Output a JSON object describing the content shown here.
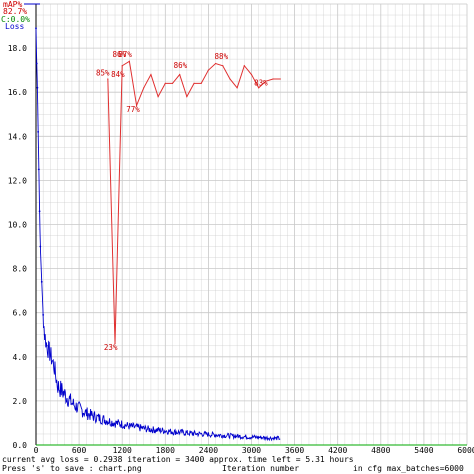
{
  "legend": {
    "map_label": "mAP%",
    "map_value": "82.7%",
    "c_label": "C:0.0%",
    "loss_label": "Loss"
  },
  "status": {
    "left": "current avg loss = 0.2938   iteration = 3400   approx. time left = 5.31 hours",
    "left2": "Press 's' to save : chart.png",
    "xlabel": "Iteration number",
    "right": "in cfg max_batches=6000"
  },
  "colors": {
    "map_line": "#e03030",
    "map_text": "#cc0000",
    "loss": "#0000cc",
    "c_text": "#008800",
    "grid": "#c8c8c8",
    "axis": "#000000"
  },
  "chart_data": {
    "type": "line",
    "title": "",
    "xlabel": "Iteration number",
    "ylabel": "",
    "xlim": [
      0,
      6000
    ],
    "ylim": [
      0,
      20
    ],
    "grid": true,
    "legend_position": "top-left",
    "x_ticks": [
      "0",
      "600",
      "1200",
      "1800",
      "2400",
      "3000",
      "3600",
      "4200",
      "4800",
      "5400",
      "6000"
    ],
    "y_ticks": [
      "0.0",
      "2.0",
      "4.0",
      "6.0",
      "8.0",
      "10.0",
      "12.0",
      "14.0",
      "16.0",
      "18.0"
    ],
    "series": [
      {
        "name": "Loss",
        "color": "#0000cc",
        "x": [
          0,
          10,
          20,
          30,
          40,
          50,
          60,
          80,
          100,
          120,
          150,
          200,
          250,
          300,
          350,
          400,
          450,
          500,
          600,
          700,
          800,
          900,
          1000,
          1100,
          1200,
          1300,
          1400,
          1500,
          1600,
          1700,
          1800,
          1900,
          2000,
          2100,
          2200,
          2300,
          2400,
          2500,
          2600,
          2700,
          2800,
          2900,
          3000,
          3100,
          3200,
          3300,
          3400
        ],
        "y": [
          18.9,
          17.3,
          16.2,
          14.2,
          12.5,
          10.6,
          9.0,
          7.4,
          5.9,
          5.0,
          4.5,
          4.1,
          3.6,
          2.7,
          2.5,
          2.3,
          2.1,
          1.9,
          1.65,
          1.45,
          1.3,
          1.2,
          1.1,
          1.0,
          0.95,
          0.85,
          0.8,
          0.75,
          0.7,
          0.68,
          0.65,
          0.6,
          0.58,
          0.55,
          0.52,
          0.5,
          0.48,
          0.46,
          0.44,
          0.42,
          0.4,
          0.38,
          0.36,
          0.35,
          0.33,
          0.31,
          0.3
        ]
      },
      {
        "name": "mAP%",
        "color": "#e03030",
        "x": [
          1000,
          1100,
          1200,
          1300,
          1400,
          1500,
          1600,
          1700,
          1800,
          1900,
          2000,
          2100,
          2200,
          2300,
          2400,
          2500,
          2600,
          2700,
          2800,
          2900,
          3000,
          3100,
          3200,
          3300,
          3400
        ],
        "y": [
          16.6,
          4.6,
          17.2,
          17.4,
          15.4,
          16.2,
          16.8,
          15.8,
          16.4,
          16.4,
          16.8,
          15.8,
          16.4,
          16.4,
          17.0,
          17.3,
          17.2,
          16.6,
          16.2,
          17.2,
          16.8,
          16.2,
          16.5,
          16.6,
          16.6
        ]
      }
    ],
    "annotations": [
      {
        "text": "85%",
        "x": 930,
        "y": 16.75
      },
      {
        "text": "84%",
        "x": 1140,
        "y": 16.7
      },
      {
        "text": "23%",
        "x": 1040,
        "y": 4.3
      },
      {
        "text": "87%",
        "x": 1240,
        "y": 17.6
      },
      {
        "text": "86%",
        "x": 1160,
        "y": 17.6
      },
      {
        "text": "77%",
        "x": 1350,
        "y": 15.1
      },
      {
        "text": "86%",
        "x": 2010,
        "y": 17.1
      },
      {
        "text": "88%",
        "x": 2580,
        "y": 17.5
      },
      {
        "text": "83%",
        "x": 3130,
        "y": 16.3
      }
    ]
  }
}
